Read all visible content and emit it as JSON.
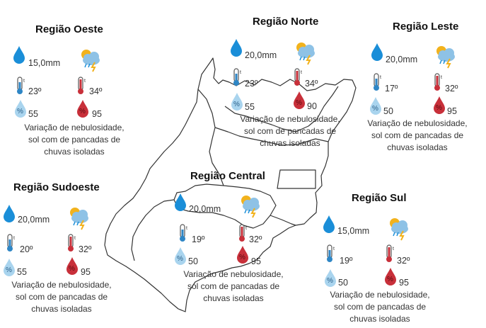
{
  "regions": [
    {
      "title": "Região Oeste",
      "rain": "15,0mm",
      "min_temp": "23º",
      "max_temp": "34º",
      "min_humidity": "55",
      "max_humidity": "95",
      "forecast": [
        "Variação de nebulosidade,",
        "sol com de pancadas de",
        "chuvas isoladas"
      ]
    },
    {
      "title": "Região Norte",
      "rain": "20,0mm",
      "min_temp": "23º",
      "max_temp": "34º",
      "min_humidity": "55",
      "max_humidity": "90",
      "forecast": [
        "Variação de nebulosidade,",
        "sol com de pancadas de",
        "chuvas isoladas"
      ]
    },
    {
      "title": "Região Leste",
      "rain": "20,0mm",
      "min_temp": "17º",
      "max_temp": "32º",
      "min_humidity": "50",
      "max_humidity": "95",
      "forecast": [
        "Variação de nebulosidade,",
        "sol com de pancadas de",
        "chuvas isoladas"
      ]
    },
    {
      "title": "Região Sudoeste",
      "rain": "20,0mm",
      "min_temp": "20º",
      "max_temp": "32º",
      "min_humidity": "55",
      "max_humidity": "95",
      "forecast": [
        "Variação de nebulosidade,",
        "sol com de pancadas de",
        "chuvas isoladas"
      ]
    },
    {
      "title": "Região Central",
      "rain": "20,0mm",
      "min_temp": "19º",
      "max_temp": "32º",
      "min_humidity": "50",
      "max_humidity": "95",
      "forecast": [
        "Variação de nebulosidade,",
        "sol com de pancadas de",
        "chuvas isoladas"
      ]
    },
    {
      "title": "Região Sul",
      "rain": "15,0mm",
      "min_temp": "19º",
      "max_temp": "32º",
      "min_humidity": "50",
      "max_humidity": "95",
      "forecast": [
        "Variação de nebulosidade,",
        "sol com de pancadas de",
        "chuvas isoladas"
      ]
    }
  ],
  "icons": {
    "rain": "raindrop-icon",
    "weather": "cloud-sun-storm-icon",
    "min_temp": "thermometer-cold-icon",
    "max_temp": "thermometer-hot-icon",
    "min_humidity": "humidity-low-icon",
    "max_humidity": "humidity-high-icon"
  },
  "colors": {
    "drop_blue": "#1a8ed8",
    "cold_blue": "#2f86c5",
    "hot_red": "#c8303a",
    "humidity_light": "#a9d4ee",
    "map_outline": "#333333",
    "sun_yellow": "#f2b21c",
    "cloud_blue": "#8ec2e6"
  }
}
